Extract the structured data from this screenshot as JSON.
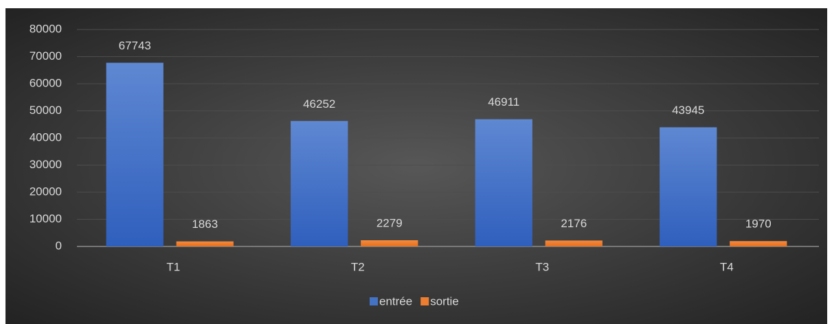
{
  "chart_data": {
    "type": "bar",
    "categories": [
      "T1",
      "T2",
      "T3",
      "T4"
    ],
    "series": [
      {
        "name": "entrée",
        "color": "#4472c4",
        "values": [
          67743,
          46252,
          46911,
          43945
        ]
      },
      {
        "name": "sortie",
        "color": "#ed7d31",
        "values": [
          1863,
          2279,
          2176,
          1970
        ]
      }
    ],
    "ylim": [
      0,
      80000
    ],
    "yticks": [
      0,
      10000,
      20000,
      30000,
      40000,
      50000,
      60000,
      70000,
      80000
    ],
    "grid": true,
    "legend": "bottom"
  }
}
